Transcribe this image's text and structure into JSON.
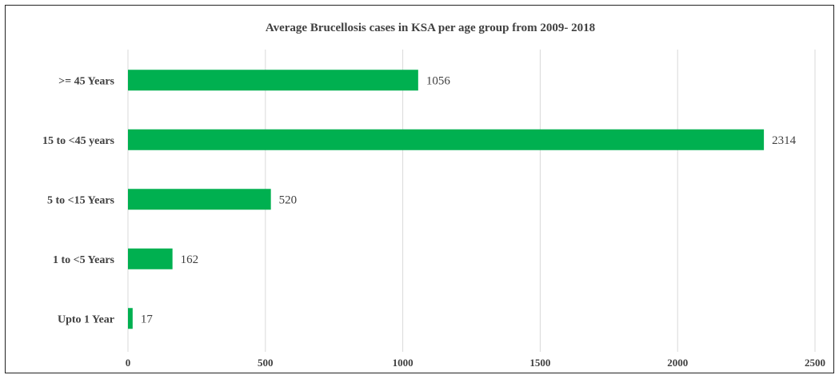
{
  "chart_data": {
    "type": "bar",
    "orientation": "horizontal",
    "title": "Average Brucellosis cases in KSA per age group from 2009- 2018",
    "categories": [
      ">= 45 Years",
      "15 to <45 years",
      "5 to <15 Years",
      "1 to <5 Years",
      "Upto 1 Year"
    ],
    "values": [
      1056,
      2314,
      520,
      162,
      17
    ],
    "data_labels": [
      "1056",
      "2314",
      "520",
      "162",
      "17"
    ],
    "xlim": [
      0,
      2500
    ],
    "x_ticks": [
      "0",
      "500",
      "1000",
      "1500",
      "2000",
      "2500"
    ],
    "grid": "vertical",
    "legend": "none",
    "bar_color": "#00B050"
  }
}
